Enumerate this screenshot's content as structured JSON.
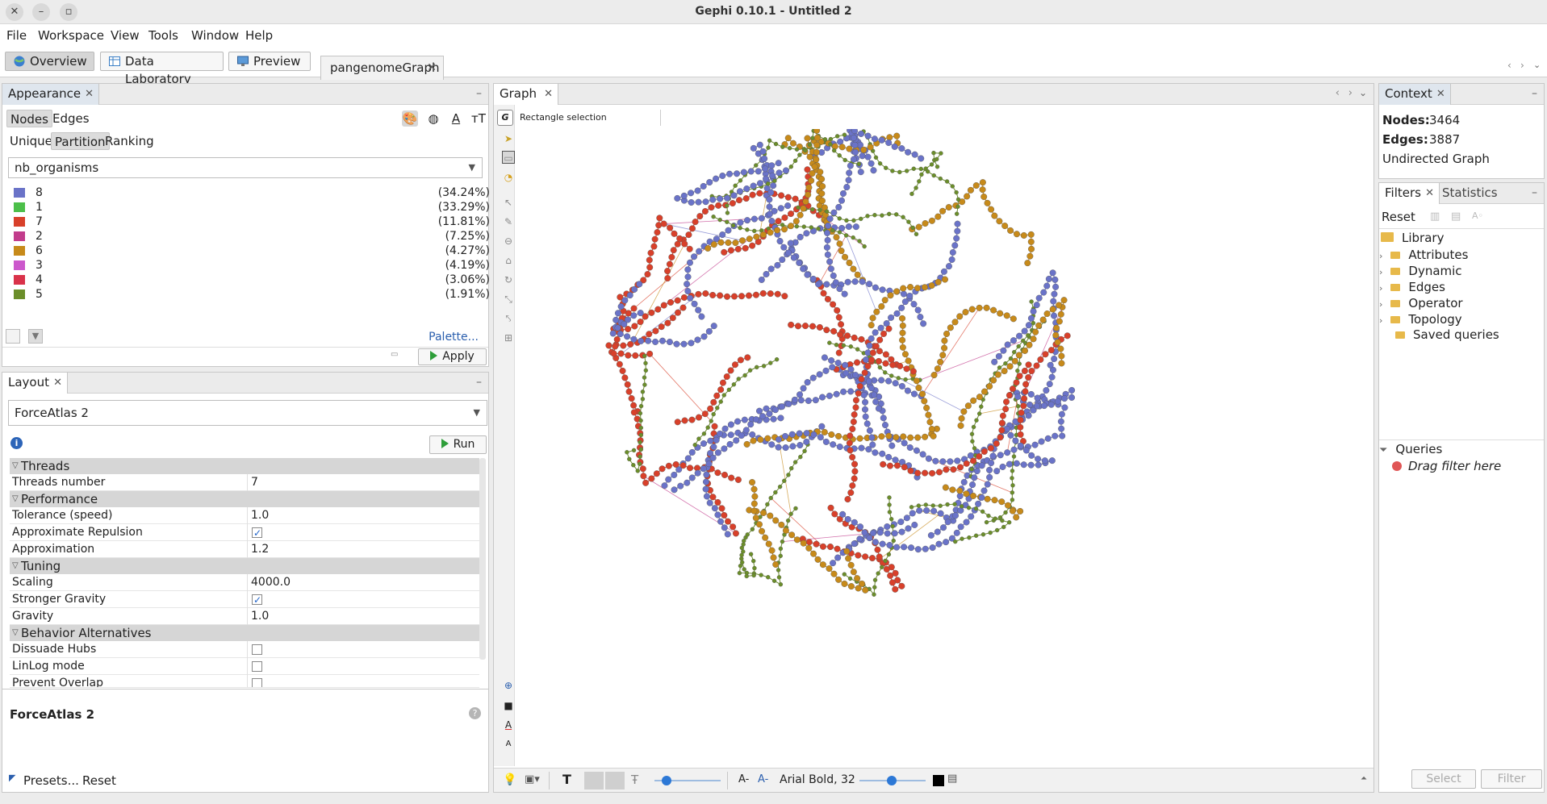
{
  "window": {
    "title": "Gephi 0.10.1 - Untitled 2"
  },
  "menu": [
    "File",
    "Workspace",
    "View",
    "Tools",
    "Window",
    "Help"
  ],
  "modes": {
    "overview": "Overview",
    "data_lab": "Data Laboratory",
    "preview": "Preview"
  },
  "doc_tab": "pangenomeGraph",
  "appearance": {
    "tab": "Appearance",
    "nodes_label": "Nodes",
    "edges_label": "Edges",
    "unique": "Unique",
    "partition": "Partition",
    "ranking": "Ranking",
    "attribute": "nb_organisms",
    "legend": [
      {
        "label": "8",
        "pct": "(34.24%)",
        "color": "#6a73c8"
      },
      {
        "label": "1",
        "pct": "(33.29%)",
        "color": "#4cbf4a"
      },
      {
        "label": "7",
        "pct": "(11.81%)",
        "color": "#d8402a"
      },
      {
        "label": "2",
        "pct": "(7.25%)",
        "color": "#c23c8c"
      },
      {
        "label": "6",
        "pct": "(4.27%)",
        "color": "#c78a1a"
      },
      {
        "label": "3",
        "pct": "(4.19%)",
        "color": "#cc58cc"
      },
      {
        "label": "4",
        "pct": "(3.06%)",
        "color": "#d9324a"
      },
      {
        "label": "5",
        "pct": "(1.91%)",
        "color": "#6b8e2a"
      }
    ],
    "palette": "Palette...",
    "apply": "Apply"
  },
  "layout": {
    "tab": "Layout",
    "algorithm": "ForceAtlas 2",
    "run": "Run",
    "groups": {
      "threads": "Threads",
      "performance": "Performance",
      "tuning": "Tuning",
      "behavior": "Behavior Alternatives"
    },
    "props": {
      "threads_number": {
        "k": "Threads number",
        "v": "7"
      },
      "tolerance": {
        "k": "Tolerance (speed)",
        "v": "1.0"
      },
      "approx_repulsion": {
        "k": "Approximate Repulsion"
      },
      "approximation": {
        "k": "Approximation",
        "v": "1.2"
      },
      "scaling": {
        "k": "Scaling",
        "v": "4000.0"
      },
      "stronger_gravity": {
        "k": "Stronger Gravity"
      },
      "gravity": {
        "k": "Gravity",
        "v": "1.0"
      },
      "dissuade_hubs": {
        "k": "Dissuade Hubs"
      },
      "linlog": {
        "k": "LinLog mode"
      },
      "prevent_overlap": {
        "k": "Prevent Overlap"
      }
    },
    "desc_title": "ForceAtlas 2",
    "presets": "Presets...",
    "reset": "Reset"
  },
  "graph": {
    "tab": "Graph",
    "tool_hint": "Rectangle selection",
    "font_label": "Arial Bold, 32"
  },
  "context": {
    "tab": "Context",
    "nodes_label": "Nodes:",
    "nodes_value": "3464",
    "edges_label": "Edges:",
    "edges_value": "3887",
    "graph_type": "Undirected Graph"
  },
  "filters": {
    "tab_filters": "Filters",
    "tab_statistics": "Statistics",
    "reset": "Reset",
    "library": "Library",
    "items": [
      "Attributes",
      "Dynamic",
      "Edges",
      "Operator",
      "Topology"
    ],
    "saved": "Saved queries",
    "queries": "Queries",
    "drag_hint": "Drag filter here",
    "select": "Select",
    "filter": "Filter"
  },
  "colors": {
    "node_blue": "#6a73c8",
    "node_red": "#d8402a",
    "node_orange": "#c78a1a",
    "node_green": "#6b8e2a"
  }
}
